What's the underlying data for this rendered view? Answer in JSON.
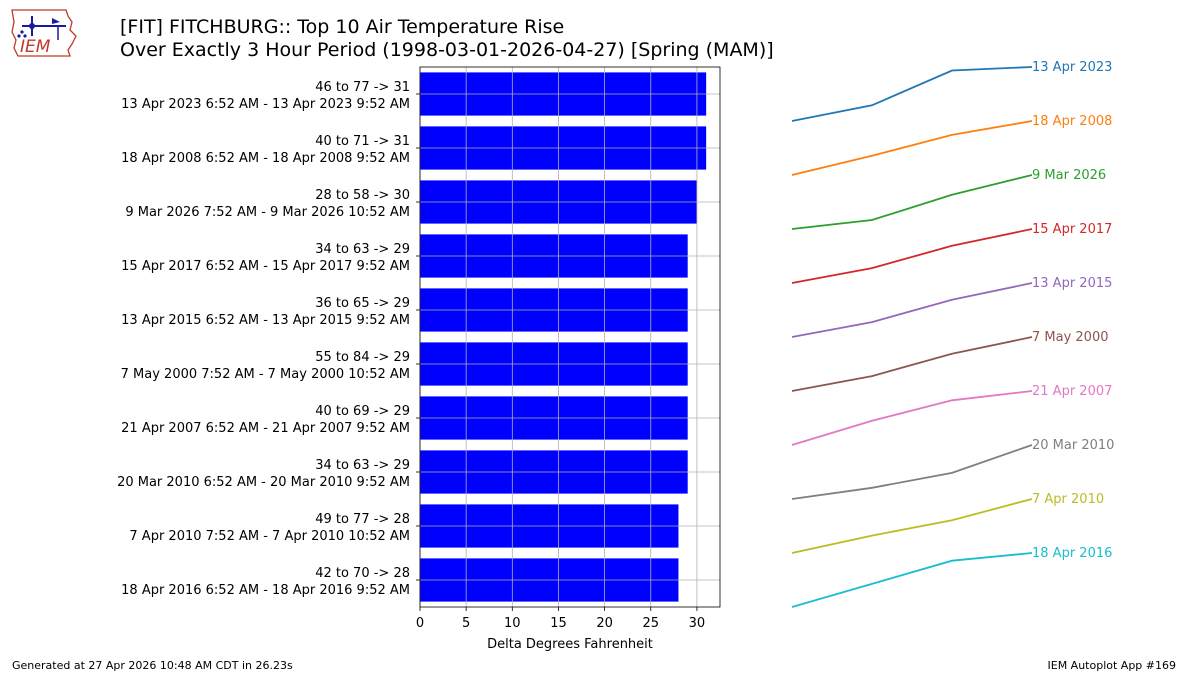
{
  "title": {
    "line1": "[FIT] FITCHBURG:: Top 10 Air Temperature Rise",
    "line2": "Over Exactly 3 Hour Period (1998-03-01-2026-04-27) [Spring (MAM)]"
  },
  "logo": {
    "text": "IEM",
    "icon": "iem-logo"
  },
  "footer": {
    "generated": "Generated at 27 Apr 2026 10:48 AM CDT in 26.23s",
    "app": "IEM Autoplot App #169"
  },
  "chart_data": {
    "type": "bar",
    "orientation": "horizontal",
    "bar_color": "#0000ff",
    "xlabel": "Delta Degrees Fahrenheit",
    "xlim": [
      0,
      32.5
    ],
    "xticks": [
      0,
      5,
      10,
      15,
      20,
      25,
      30
    ],
    "grid": true,
    "rows": [
      {
        "range": "46 to 77 -> 31",
        "period": "13 Apr 2023 6:52 AM - 13 Apr 2023 9:52 AM",
        "value": 31,
        "label": "13 Apr 2023",
        "color": "#1f77b4",
        "trace": [
          46,
          55,
          75,
          77
        ]
      },
      {
        "range": "40 to 71 -> 31",
        "period": "18 Apr 2008 6:52 AM - 18 Apr 2008 9:52 AM",
        "value": 31,
        "label": "18 Apr 2008",
        "color": "#ff7f0e",
        "trace": [
          40,
          51,
          63,
          71
        ]
      },
      {
        "range": "28 to 58 -> 30",
        "period": "9 Mar 2026 7:52 AM - 9 Mar 2026 10:52 AM",
        "value": 30,
        "label": "9 Mar 2026",
        "color": "#2ca02c",
        "trace": [
          28,
          33,
          47,
          58
        ]
      },
      {
        "range": "34 to 63 -> 29",
        "period": "15 Apr 2017 6:52 AM - 15 Apr 2017 9:52 AM",
        "value": 29,
        "label": "15 Apr 2017",
        "color": "#d62728",
        "trace": [
          34,
          42,
          54,
          63
        ]
      },
      {
        "range": "36 to 65 -> 29",
        "period": "13 Apr 2015 6:52 AM - 13 Apr 2015 9:52 AM",
        "value": 29,
        "label": "13 Apr 2015",
        "color": "#9467bd",
        "trace": [
          36,
          44,
          56,
          65
        ]
      },
      {
        "range": "55 to 84 -> 29",
        "period": "7 May 2000 7:52 AM - 7 May 2000 10:52 AM",
        "value": 29,
        "label": "7 May 2000",
        "color": "#8c564b",
        "trace": [
          55,
          63,
          75,
          84
        ]
      },
      {
        "range": "40 to 69 -> 29",
        "period": "21 Apr 2007 6:52 AM - 21 Apr 2007 9:52 AM",
        "value": 29,
        "label": "21 Apr 2007",
        "color": "#e377c2",
        "trace": [
          40,
          53,
          64,
          69
        ]
      },
      {
        "range": "34 to 63 -> 29",
        "period": "20 Mar 2010 6:52 AM - 20 Mar 2010 9:52 AM",
        "value": 29,
        "label": "20 Mar 2010",
        "color": "#7f7f7f",
        "trace": [
          34,
          40,
          48,
          63
        ]
      },
      {
        "range": "49 to 77 -> 28",
        "period": "7 Apr 2010 7:52 AM - 7 Apr 2010 10:52 AM",
        "value": 28,
        "label": "7 Apr 2010",
        "color": "#bcbd22",
        "trace": [
          49,
          58,
          66,
          77
        ]
      },
      {
        "range": "42 to 70 -> 28",
        "period": "18 Apr 2016 6:52 AM - 18 Apr 2016 9:52 AM",
        "value": 28,
        "label": "18 Apr 2016",
        "color": "#17becf",
        "trace": [
          42,
          54,
          66,
          70
        ]
      }
    ]
  }
}
